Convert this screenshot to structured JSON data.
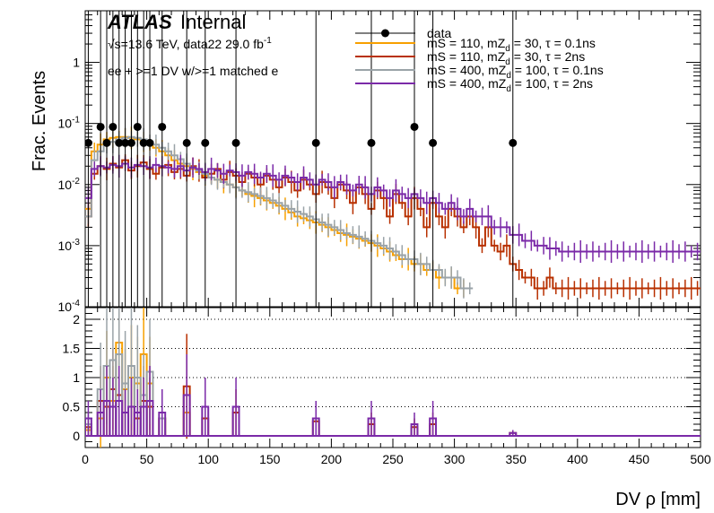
{
  "chart_data": [
    {
      "type": "step",
      "ylabel": "Frac. Events",
      "yscale": "log",
      "ylim": [
        0.0001,
        7
      ],
      "xlim": [
        0,
        500
      ],
      "y_tick_labels": [
        "10^-4",
        "10^-3",
        "10^-2",
        "10^-1",
        "1"
      ],
      "annotations": {
        "experiment": "ATLAS",
        "status": "Internal",
        "energy_prefix": "√s=13.6 TeV, data22 29.0 fb",
        "energy_sup": "-1",
        "selection": "ee + >=1 DV w/>=1 matched e"
      },
      "legend_placement": "top-right",
      "series": [
        {
          "name": "data",
          "color": "#000000",
          "style": "points",
          "x": [
            2.5,
            12.5,
            17.5,
            22.5,
            27.5,
            32.5,
            37.5,
            42.5,
            47.5,
            52.5,
            62.5,
            82.5,
            97.5,
            122.5,
            187.5,
            232.5,
            267.5,
            282.5,
            347.5
          ],
          "y": [
            0.048,
            0.088,
            0.048,
            0.088,
            0.048,
            0.048,
            0.048,
            0.088,
            0.048,
            0.048,
            0.088,
            0.048,
            0.048,
            0.048,
            0.048,
            0.048,
            0.088,
            0.048,
            0.048
          ]
        },
        {
          "name_parts": [
            "mS = 110, mZ",
            "d",
            " = 30, τ = 0.1ns"
          ],
          "color": "#f7a000",
          "x_start": 0,
          "bin_width": 5,
          "values": [
            0.004,
            0.035,
            0.045,
            0.055,
            0.058,
            0.06,
            0.06,
            0.058,
            0.055,
            0.05,
            0.045,
            0.04,
            0.035,
            0.03,
            0.025,
            0.022,
            0.02,
            0.018,
            0.016,
            0.014,
            0.013,
            0.012,
            0.011,
            0.01,
            0.009,
            0.008,
            0.007,
            0.0065,
            0.006,
            0.0055,
            0.005,
            0.0045,
            0.004,
            0.0035,
            0.003,
            0.0028,
            0.0026,
            0.0024,
            0.0022,
            0.002,
            0.0018,
            0.0016,
            0.0015,
            0.0014,
            0.0013,
            0.0012,
            0.0011,
            0.001,
            0.0009,
            0.0008,
            0.0007,
            0.0006,
            0.0006,
            0.0005,
            0.0005,
            0.0004,
            0.0004,
            0.0003,
            0.0003,
            0.0003,
            0.0002,
            0.0002
          ]
        },
        {
          "name_parts": [
            "mS = 110, mZ",
            "d",
            " = 30, τ = 2ns"
          ],
          "color": "#b83000",
          "x_start": 0,
          "bin_width": 5,
          "values": [
            0.003,
            0.015,
            0.02,
            0.018,
            0.022,
            0.019,
            0.025,
            0.017,
            0.02,
            0.023,
            0.018,
            0.015,
            0.019,
            0.021,
            0.016,
            0.018,
            0.014,
            0.02,
            0.017,
            0.013,
            0.015,
            0.018,
            0.012,
            0.016,
            0.014,
            0.011,
            0.015,
            0.013,
            0.01,
            0.014,
            0.012,
            0.009,
            0.013,
            0.011,
            0.008,
            0.012,
            0.01,
            0.007,
            0.011,
            0.009,
            0.006,
            0.01,
            0.008,
            0.005,
            0.009,
            0.007,
            0.004,
            0.008,
            0.006,
            0.003,
            0.007,
            0.005,
            0.003,
            0.006,
            0.004,
            0.002,
            0.005,
            0.003,
            0.002,
            0.004,
            0.003,
            0.002,
            0.003,
            0.002,
            0.001,
            0.002,
            0.001,
            0.0008,
            0.001,
            0.0005,
            0.0004,
            0.0003,
            0.0003,
            0.0002,
            0.0002,
            0.0003,
            0.0002,
            0.0002,
            0.0002,
            0.0002,
            0.0002,
            0.0002,
            0.0002,
            0.0002,
            0.0002,
            0.0002,
            0.0002,
            0.0002,
            0.0002,
            0.0002,
            0.0002,
            0.0002,
            0.0002,
            0.0002,
            0.0002,
            0.0002,
            0.0002,
            0.0002,
            0.0002,
            0.0002
          ]
        },
        {
          "name_parts": [
            "mS = 400, mZ",
            "d",
            " = 100, τ = 0.1ns"
          ],
          "color": "#9aa3a8",
          "x_start": 0,
          "bin_width": 5,
          "values": [
            0.003,
            0.025,
            0.035,
            0.045,
            0.05,
            0.055,
            0.058,
            0.06,
            0.058,
            0.055,
            0.05,
            0.045,
            0.04,
            0.035,
            0.03,
            0.026,
            0.022,
            0.019,
            0.017,
            0.015,
            0.013,
            0.012,
            0.011,
            0.01,
            0.009,
            0.008,
            0.0075,
            0.007,
            0.0065,
            0.006,
            0.0055,
            0.005,
            0.0045,
            0.004,
            0.0036,
            0.0033,
            0.003,
            0.0027,
            0.0024,
            0.0022,
            0.002,
            0.0018,
            0.0016,
            0.0015,
            0.0014,
            0.0013,
            0.0012,
            0.0011,
            0.001,
            0.0009,
            0.0008,
            0.0007,
            0.0006,
            0.0006,
            0.0005,
            0.0005,
            0.0004,
            0.0004,
            0.0003,
            0.0003,
            0.0003,
            0.0002,
            0.0002
          ]
        },
        {
          "name_parts": [
            "mS = 400, mZ",
            "d",
            " = 100, τ = 2ns"
          ],
          "color": "#7b2aa8",
          "x_start": 0,
          "bin_width": 5,
          "values": [
            0.006,
            0.018,
            0.02,
            0.019,
            0.021,
            0.02,
            0.022,
            0.019,
            0.021,
            0.02,
            0.019,
            0.021,
            0.02,
            0.019,
            0.018,
            0.02,
            0.017,
            0.019,
            0.018,
            0.016,
            0.018,
            0.017,
            0.015,
            0.017,
            0.016,
            0.014,
            0.016,
            0.015,
            0.013,
            0.015,
            0.014,
            0.012,
            0.014,
            0.013,
            0.011,
            0.013,
            0.012,
            0.01,
            0.012,
            0.011,
            0.009,
            0.011,
            0.01,
            0.008,
            0.01,
            0.009,
            0.007,
            0.009,
            0.008,
            0.006,
            0.008,
            0.007,
            0.006,
            0.007,
            0.006,
            0.005,
            0.006,
            0.005,
            0.004,
            0.005,
            0.004,
            0.003,
            0.004,
            0.003,
            0.003,
            0.003,
            0.002,
            0.002,
            0.002,
            0.0015,
            0.0015,
            0.0012,
            0.0012,
            0.001,
            0.001,
            0.0009,
            0.0009,
            0.0008,
            0.0008,
            0.0008,
            0.0008,
            0.0008,
            0.0008,
            0.0008,
            0.0008,
            0.0008,
            0.0008,
            0.0008,
            0.0008,
            0.0008,
            0.0008,
            0.0008,
            0.0008,
            0.0008,
            0.0008,
            0.0008,
            0.0008,
            0.0008,
            0.0008,
            0.0008
          ]
        }
      ]
    },
    {
      "type": "step",
      "xlabel": "DV ρ [mm]",
      "xlim": [
        0,
        500
      ],
      "ylim": [
        -0.2,
        2.2
      ],
      "x_tick_labels": [
        "0",
        "50",
        "100",
        "150",
        "200",
        "250",
        "300",
        "350",
        "400",
        "450",
        "500"
      ],
      "y_tick_labels": [
        "0",
        "0.5",
        "1",
        "1.5",
        "2"
      ],
      "dotted_gridlines_y": [
        0.5,
        1,
        1.5,
        2
      ],
      "series": [
        {
          "name_ref": "mS = 110, mZd = 30, τ = 0.1ns",
          "color": "#f7a000",
          "points": [
            [
              2.5,
              0.1,
              0.1
            ],
            [
              12.5,
              0.3,
              0.5
            ],
            [
              17.5,
              1.0,
              0.8
            ],
            [
              22.5,
              0.6,
              0.6
            ],
            [
              27.5,
              1.6,
              1.0
            ],
            [
              32.5,
              0.8,
              0.7
            ],
            [
              37.5,
              1.0,
              0.9
            ],
            [
              42.5,
              0.9,
              0.8
            ],
            [
              47.5,
              1.4,
              1.0
            ],
            [
              52.5,
              0.9,
              0.8
            ],
            [
              62.5,
              0.3,
              0.3
            ],
            [
              82.5,
              0.4,
              0.4
            ]
          ]
        },
        {
          "name_ref": "mS = 110, mZd = 30, τ = 2ns",
          "color": "#b83000",
          "points": [
            [
              2.5,
              0.15,
              0.15
            ],
            [
              12.5,
              0.6,
              0.6
            ],
            [
              17.5,
              0.5,
              0.5
            ],
            [
              22.5,
              0.8,
              0.7
            ],
            [
              27.5,
              0.7,
              0.6
            ],
            [
              32.5,
              0.4,
              0.4
            ],
            [
              37.5,
              0.5,
              0.5
            ],
            [
              42.5,
              0.3,
              0.3
            ],
            [
              47.5,
              0.6,
              0.6
            ],
            [
              52.5,
              0.5,
              0.5
            ],
            [
              62.5,
              0.3,
              0.3
            ],
            [
              82.5,
              0.85,
              0.9
            ],
            [
              97.5,
              0.3,
              0.3
            ],
            [
              122.5,
              0.4,
              0.4
            ],
            [
              187.5,
              0.25,
              0.25
            ],
            [
              232.5,
              0.2,
              0.2
            ],
            [
              267.5,
              0.15,
              0.15
            ],
            [
              282.5,
              0.2,
              0.2
            ],
            [
              347.5,
              0.05,
              0.05
            ]
          ]
        },
        {
          "name_ref": "mS = 400, mZd = 100, τ = 0.1ns",
          "color": "#9aa3a8",
          "points": [
            [
              2.5,
              0.2,
              0.2
            ],
            [
              12.5,
              0.8,
              0.8
            ],
            [
              17.5,
              1.2,
              1.0
            ],
            [
              22.5,
              1.3,
              1.0
            ],
            [
              27.5,
              1.4,
              1.0
            ],
            [
              32.5,
              0.9,
              0.9
            ],
            [
              37.5,
              1.2,
              1.0
            ],
            [
              42.5,
              1.0,
              0.9
            ],
            [
              47.5,
              0.7,
              0.7
            ],
            [
              52.5,
              1.1,
              0.9
            ],
            [
              62.5,
              0.3,
              0.3
            ]
          ]
        },
        {
          "name_ref": "mS = 400, mZd = 100, τ = 2ns",
          "color": "#7b2aa8",
          "points": [
            [
              2.5,
              0.3,
              0.3
            ],
            [
              12.5,
              0.4,
              0.4
            ],
            [
              17.5,
              0.6,
              0.6
            ],
            [
              22.5,
              0.5,
              0.5
            ],
            [
              27.5,
              0.6,
              0.6
            ],
            [
              32.5,
              0.4,
              0.4
            ],
            [
              37.5,
              0.5,
              0.5
            ],
            [
              42.5,
              0.4,
              0.4
            ],
            [
              47.5,
              0.5,
              0.5
            ],
            [
              52.5,
              0.6,
              0.6
            ],
            [
              62.5,
              0.4,
              0.4
            ],
            [
              82.5,
              0.7,
              0.7
            ],
            [
              97.5,
              0.5,
              0.5
            ],
            [
              122.5,
              0.5,
              0.5
            ],
            [
              187.5,
              0.3,
              0.3
            ],
            [
              232.5,
              0.3,
              0.3
            ],
            [
              267.5,
              0.2,
              0.2
            ],
            [
              282.5,
              0.3,
              0.3
            ],
            [
              347.5,
              0.05,
              0.05
            ]
          ]
        }
      ]
    }
  ]
}
